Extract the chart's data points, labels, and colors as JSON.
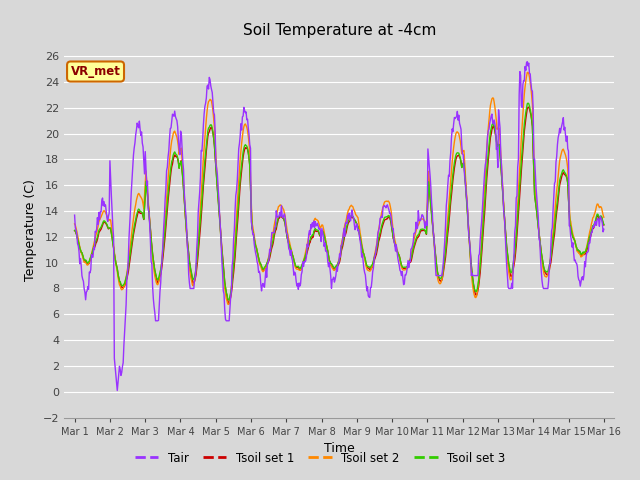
{
  "title": "Soil Temperature at -4cm",
  "xlabel": "Time",
  "ylabel": "Temperature (C)",
  "ylim": [
    -2,
    27
  ],
  "yticks": [
    -2,
    0,
    2,
    4,
    6,
    8,
    10,
    12,
    14,
    16,
    18,
    20,
    22,
    24,
    26
  ],
  "xtick_labels": [
    "Mar 1",
    "Mar 2",
    "Mar 3",
    "Mar 4",
    "Mar 5",
    "Mar 6",
    "Mar 7",
    "Mar 8",
    "Mar 9",
    "Mar 10",
    "Mar 11",
    "Mar 12",
    "Mar 13",
    "Mar 14",
    "Mar 15",
    "Mar 16"
  ],
  "colors": {
    "Tair": "#9933ff",
    "Tsoil1": "#cc0000",
    "Tsoil2": "#ff8800",
    "Tsoil3": "#33cc00"
  },
  "background_color": "#d8d8d8",
  "plot_bg_color": "#d8d8d8",
  "grid_color": "#ffffff",
  "annotation_text": "VR_met",
  "annotation_bg": "#ffff99",
  "annotation_border": "#cc6600",
  "legend_labels": [
    "Tair",
    "Tsoil set 1",
    "Tsoil set 2",
    "Tsoil set 3"
  ],
  "figsize": [
    6.4,
    4.8
  ],
  "dpi": 100
}
